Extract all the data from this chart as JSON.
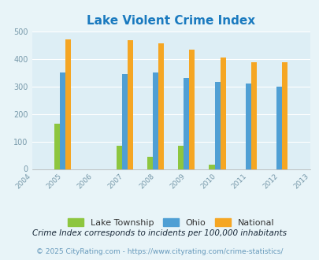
{
  "title": "Lake Violent Crime Index",
  "all_years": [
    2004,
    2005,
    2006,
    2007,
    2008,
    2009,
    2010,
    2011,
    2012,
    2013
  ],
  "data_years": [
    2005,
    2007,
    2008,
    2009,
    2010,
    2011,
    2012
  ],
  "lake_township": [
    165,
    83,
    43,
    83,
    15,
    0,
    0
  ],
  "ohio": [
    350,
    345,
    350,
    330,
    315,
    309,
    300
  ],
  "national": [
    470,
    468,
    455,
    433,
    405,
    386,
    386
  ],
  "bar_width": 0.18,
  "lake_color": "#8dc63f",
  "ohio_color": "#4f9fd4",
  "national_color": "#f5a623",
  "bg_color": "#e8f4f8",
  "plot_bg": "#ddeef5",
  "title_color": "#1a7abf",
  "ylim": [
    0,
    500
  ],
  "yticks": [
    0,
    100,
    200,
    300,
    400,
    500
  ],
  "legend_labels": [
    "Lake Township",
    "Ohio",
    "National"
  ],
  "footnote1": "Crime Index corresponds to incidents per 100,000 inhabitants",
  "footnote2": "© 2025 CityRating.com - https://www.cityrating.com/crime-statistics/",
  "footnote1_color": "#1a2a3a",
  "footnote2_color": "#6699bb"
}
